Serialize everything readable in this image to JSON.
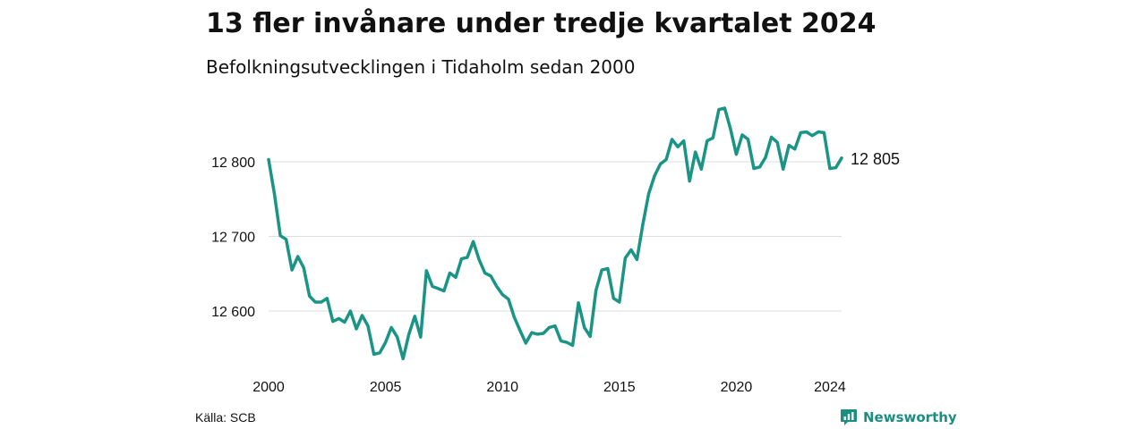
{
  "header": {
    "title": "13 fler invånare under tredje kvartalet 2024",
    "subtitle": "Befolkningsutvecklingen i Tidaholm sedan 2000"
  },
  "footer": {
    "source": "Källa: SCB",
    "brand": "Newsworthy",
    "brand_icon": "newsworthy-logo-icon"
  },
  "colors": {
    "line": "#1a9585",
    "grid": "#dddddd",
    "brand": "#1a8f80"
  },
  "chart_data": {
    "type": "line",
    "title": "13 fler invånare under tredje kvartalet 2024",
    "subtitle": "Befolkningsutvecklingen i Tidaholm sedan 2000",
    "xlabel": "",
    "ylabel": "",
    "ylim": [
      12530,
      12880
    ],
    "xlim": [
      2000,
      2024.5
    ],
    "grid": "horizontal",
    "y_ticks": [
      {
        "value": 12600,
        "label": "12 600"
      },
      {
        "value": 12700,
        "label": "12 700"
      },
      {
        "value": 12800,
        "label": "12 800"
      }
    ],
    "x_ticks": [
      {
        "value": 2000,
        "label": "2000"
      },
      {
        "value": 2005,
        "label": "2005"
      },
      {
        "value": 2010,
        "label": "2010"
      },
      {
        "value": 2015,
        "label": "2015"
      },
      {
        "value": 2020,
        "label": "2020"
      },
      {
        "value": 2024,
        "label": "2024"
      }
    ],
    "end_label": "12 805",
    "series": [
      {
        "x": [
          "2000Q1",
          "2000Q2",
          "2000Q3",
          "2000Q4",
          "2001Q1",
          "2001Q2",
          "2001Q3",
          "2001Q4",
          "2002Q1",
          "2002Q2",
          "2002Q3",
          "2002Q4",
          "2003Q1",
          "2003Q2",
          "2003Q3",
          "2003Q4",
          "2004Q1",
          "2004Q2",
          "2004Q3",
          "2004Q4",
          "2005Q1",
          "2005Q2",
          "2005Q3",
          "2005Q4",
          "2006Q1",
          "2006Q2",
          "2006Q3",
          "2006Q4",
          "2007Q1",
          "2007Q2",
          "2007Q3",
          "2007Q4",
          "2008Q1",
          "2008Q2",
          "2008Q3",
          "2008Q4",
          "2009Q1",
          "2009Q2",
          "2009Q3",
          "2009Q4",
          "2010Q1",
          "2010Q2",
          "2010Q3",
          "2010Q4",
          "2011Q1",
          "2011Q2",
          "2011Q3",
          "2011Q4",
          "2012Q1",
          "2012Q2",
          "2012Q3",
          "2012Q4",
          "2013Q1",
          "2013Q2",
          "2013Q3",
          "2013Q4",
          "2014Q1",
          "2014Q2",
          "2014Q3",
          "2014Q4",
          "2015Q1",
          "2015Q2",
          "2015Q3",
          "2015Q4",
          "2016Q1",
          "2016Q2",
          "2016Q3",
          "2016Q4",
          "2017Q1",
          "2017Q2",
          "2017Q3",
          "2017Q4",
          "2018Q1",
          "2018Q2",
          "2018Q3",
          "2018Q4",
          "2019Q1",
          "2019Q2",
          "2019Q3",
          "2019Q4",
          "2020Q1",
          "2020Q2",
          "2020Q3",
          "2020Q4",
          "2021Q1",
          "2021Q2",
          "2021Q3",
          "2021Q4",
          "2022Q1",
          "2022Q2",
          "2022Q3",
          "2022Q4",
          "2023Q1",
          "2023Q2",
          "2023Q3",
          "2023Q4",
          "2024Q1",
          "2024Q2",
          "2024Q3"
        ],
        "values": [
          12803,
          12757,
          12701,
          12696,
          12655,
          12673,
          12658,
          12620,
          12612,
          12612,
          12617,
          12586,
          12590,
          12585,
          12600,
          12576,
          12594,
          12580,
          12542,
          12544,
          12558,
          12578,
          12565,
          12536,
          12569,
          12593,
          12565,
          12654,
          12633,
          12630,
          12627,
          12651,
          12645,
          12670,
          12672,
          12693,
          12669,
          12651,
          12647,
          12633,
          12622,
          12616,
          12592,
          12574,
          12557,
          12571,
          12569,
          12570,
          12578,
          12580,
          12560,
          12558,
          12554,
          12611,
          12578,
          12566,
          12628,
          12655,
          12657,
          12617,
          12612,
          12671,
          12682,
          12669,
          12716,
          12757,
          12781,
          12797,
          12803,
          12830,
          12820,
          12828,
          12774,
          12813,
          12790,
          12828,
          12832,
          12870,
          12872,
          12844,
          12810,
          12836,
          12830,
          12791,
          12793,
          12806,
          12833,
          12826,
          12790,
          12822,
          12817,
          12839,
          12840,
          12835,
          12840,
          12839,
          12791,
          12792,
          12805
        ]
      }
    ]
  }
}
